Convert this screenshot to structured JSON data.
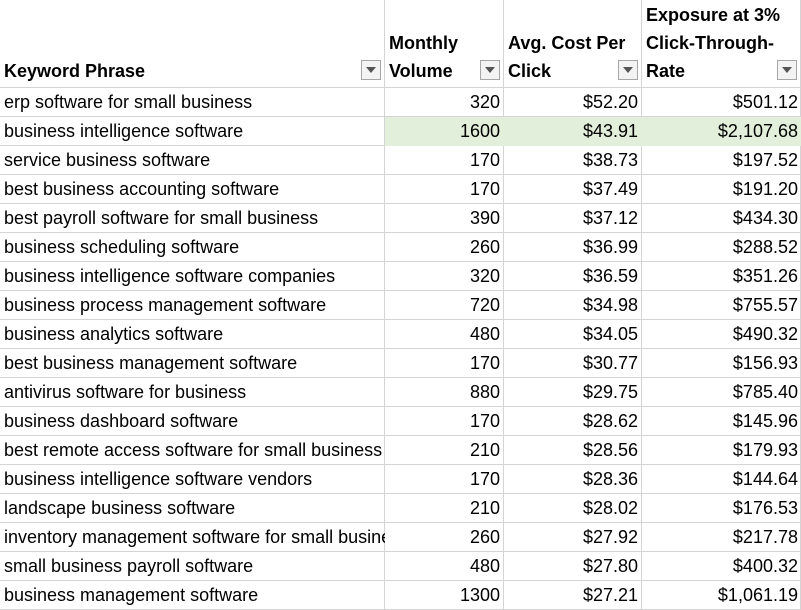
{
  "table": {
    "headers": {
      "keyword": [
        "Keyword Phrase"
      ],
      "volume": [
        "Monthly",
        "Volume"
      ],
      "cpc": [
        "Avg. Cost Per",
        "Click"
      ],
      "exposure": [
        "Exposure at 3%",
        "Click-Through-",
        "Rate"
      ]
    },
    "filter_icon": "dropdown-arrow-icon",
    "highlight_color": "#e2efda",
    "rows": [
      {
        "keyword": "erp software for small business",
        "volume": "320",
        "cpc": "$52.20",
        "exposure": "$501.12"
      },
      {
        "keyword": "business intelligence software",
        "volume": "1600",
        "cpc": "$43.91",
        "exposure": "$2,107.68",
        "highlight": true
      },
      {
        "keyword": "service business software",
        "volume": "170",
        "cpc": "$38.73",
        "exposure": "$197.52"
      },
      {
        "keyword": "best business accounting software",
        "volume": "170",
        "cpc": "$37.49",
        "exposure": "$191.20"
      },
      {
        "keyword": "best payroll software for small business",
        "volume": "390",
        "cpc": "$37.12",
        "exposure": "$434.30"
      },
      {
        "keyword": "business scheduling software",
        "volume": "260",
        "cpc": "$36.99",
        "exposure": "$288.52"
      },
      {
        "keyword": "business intelligence software companies",
        "volume": "320",
        "cpc": "$36.59",
        "exposure": "$351.26"
      },
      {
        "keyword": "business process management software",
        "volume": "720",
        "cpc": "$34.98",
        "exposure": "$755.57"
      },
      {
        "keyword": "business analytics software",
        "volume": "480",
        "cpc": "$34.05",
        "exposure": "$490.32"
      },
      {
        "keyword": "best business management software",
        "volume": "170",
        "cpc": "$30.77",
        "exposure": "$156.93"
      },
      {
        "keyword": "antivirus software for business",
        "volume": "880",
        "cpc": "$29.75",
        "exposure": "$785.40"
      },
      {
        "keyword": "business dashboard software",
        "volume": "170",
        "cpc": "$28.62",
        "exposure": "$145.96"
      },
      {
        "keyword": "best remote access software for small business",
        "volume": "210",
        "cpc": "$28.56",
        "exposure": "$179.93"
      },
      {
        "keyword": "business intelligence software vendors",
        "volume": "170",
        "cpc": "$28.36",
        "exposure": "$144.64"
      },
      {
        "keyword": "landscape business software",
        "volume": "210",
        "cpc": "$28.02",
        "exposure": "$176.53"
      },
      {
        "keyword": "inventory management software for small business",
        "volume": "260",
        "cpc": "$27.92",
        "exposure": "$217.78"
      },
      {
        "keyword": "small business payroll software",
        "volume": "480",
        "cpc": "$27.80",
        "exposure": "$400.32"
      },
      {
        "keyword": "business management software",
        "volume": "1300",
        "cpc": "$27.21",
        "exposure": "$1,061.19"
      }
    ]
  }
}
